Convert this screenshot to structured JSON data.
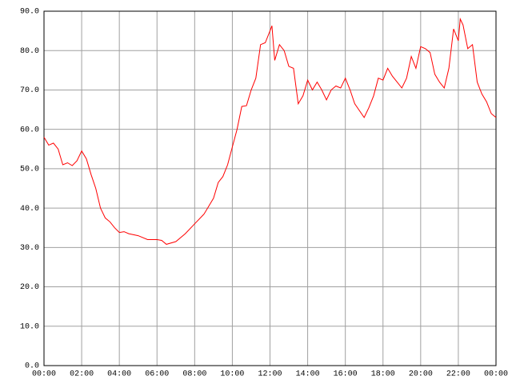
{
  "chart_data": {
    "type": "line",
    "color": "#ff0000",
    "grid": true,
    "x": [
      0,
      0.25,
      0.5,
      0.75,
      1,
      1.25,
      1.5,
      1.75,
      2,
      2.25,
      2.5,
      2.75,
      3,
      3.25,
      3.5,
      3.75,
      4,
      4.25,
      4.5,
      5,
      5.5,
      6,
      6.25,
      6.5,
      7,
      7.5,
      8,
      8.5,
      9,
      9.25,
      9.5,
      9.75,
      10,
      10.25,
      10.5,
      10.75,
      11,
      11.25,
      11.5,
      11.75,
      12,
      12.1,
      12.25,
      12.5,
      12.75,
      13,
      13.25,
      13.5,
      13.75,
      14,
      14.25,
      14.5,
      14.75,
      15,
      15.25,
      15.5,
      15.75,
      16,
      16.25,
      16.5,
      17,
      17.25,
      17.5,
      17.75,
      18,
      18.25,
      18.5,
      18.75,
      19,
      19.25,
      19.5,
      19.75,
      20,
      20.25,
      20.5,
      20.75,
      21,
      21.25,
      21.5,
      21.75,
      22,
      22.1,
      22.25,
      22.5,
      22.75,
      23,
      23.25,
      23.5,
      23.75,
      24
    ],
    "values": [
      58,
      56,
      56.5,
      55,
      51,
      51.5,
      50.8,
      52,
      54.5,
      52.5,
      48.5,
      45,
      40,
      37.5,
      36.5,
      35,
      33.8,
      34,
      33.5,
      33,
      32,
      32,
      31.8,
      30.8,
      31.5,
      33.5,
      36,
      38.5,
      42.5,
      46.5,
      48,
      51,
      55.5,
      60,
      65.8,
      66,
      70,
      73,
      81.5,
      82,
      85,
      86.3,
      77.5,
      81.5,
      80,
      76,
      75.5,
      66.5,
      68.5,
      72.5,
      70,
      72,
      70,
      67.5,
      70,
      71,
      70.5,
      73,
      70,
      66.5,
      63,
      65.5,
      68.5,
      73,
      72.5,
      75.5,
      73.5,
      72,
      70.5,
      73,
      78.5,
      75.5,
      81,
      80.5,
      79.5,
      74,
      72,
      70.5,
      75.5,
      85.5,
      82.5,
      88,
      86.5,
      80.5,
      81.5,
      72,
      69,
      67,
      64,
      63
    ],
    "xlim": [
      0,
      24
    ],
    "xticks": [
      {
        "value": 0,
        "label": "00:00"
      },
      {
        "value": 2,
        "label": "02:00"
      },
      {
        "value": 4,
        "label": "04:00"
      },
      {
        "value": 6,
        "label": "06:00"
      },
      {
        "value": 8,
        "label": "08:00"
      },
      {
        "value": 10,
        "label": "10:00"
      },
      {
        "value": 12,
        "label": "12:00"
      },
      {
        "value": 14,
        "label": "14:00"
      },
      {
        "value": 16,
        "label": "16:00"
      },
      {
        "value": 18,
        "label": "18:00"
      },
      {
        "value": 20,
        "label": "20:00"
      },
      {
        "value": 22,
        "label": "22:00"
      },
      {
        "value": 24,
        "label": "00:00"
      }
    ],
    "ylim": [
      0,
      90
    ],
    "yticks": [
      {
        "value": 0,
        "label": "0.0"
      },
      {
        "value": 10,
        "label": "10.0"
      },
      {
        "value": 20,
        "label": "20.0"
      },
      {
        "value": 30,
        "label": "30.0"
      },
      {
        "value": 40,
        "label": "40.0"
      },
      {
        "value": 50,
        "label": "50.0"
      },
      {
        "value": 60,
        "label": "60.0"
      },
      {
        "value": 70,
        "label": "70.0"
      },
      {
        "value": 80,
        "label": "80.0"
      },
      {
        "value": 90,
        "label": "90.0"
      }
    ]
  }
}
